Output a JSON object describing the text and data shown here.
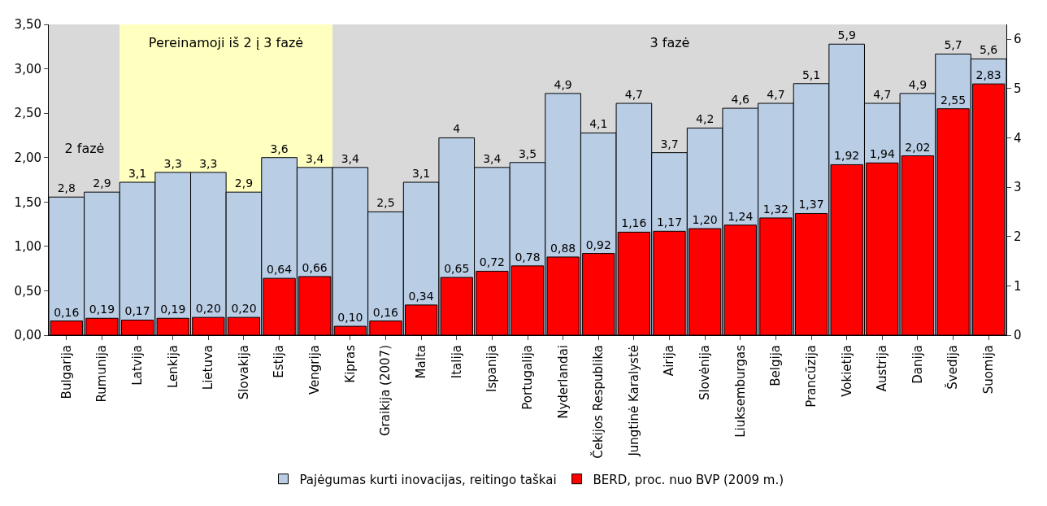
{
  "chart_data": {
    "type": "bar",
    "categories": [
      "Bulgarija",
      "Rumunija",
      "Latvija",
      "Lenkija",
      "Lietuva",
      "Slovakija",
      "Estija",
      "Vengrija",
      "Kipras",
      "Graikija (2007)",
      "Malta",
      "Italija",
      "Ispanija",
      "Portugalija",
      "Nyderlandai",
      "Čekijos Respublika",
      "Jungtinė Karalystė",
      "Airija",
      "Slovėnija",
      "Liuksemburgas",
      "Belgija",
      "Prancūzija",
      "Vokietija",
      "Austrija",
      "Danija",
      "Švedija",
      "Suomija"
    ],
    "series": [
      {
        "name": "Pajėgumas kurti inovacijas, reitingo taškai",
        "color": "#b9cde5",
        "axis": "y2",
        "values": [
          2.8,
          2.9,
          3.1,
          3.3,
          3.3,
          2.9,
          3.6,
          3.4,
          3.4,
          2.5,
          3.1,
          4,
          3.4,
          3.5,
          4.9,
          4.1,
          4.7,
          3.7,
          4.2,
          4.6,
          4.7,
          5.1,
          5.9,
          4.7,
          4.9,
          5.7,
          5.6
        ],
        "value_labels": [
          "2,8",
          "2,9",
          "3,1",
          "3,3",
          "3,3",
          "2,9",
          "3,6",
          "3,4",
          "3,4",
          "2,5",
          "3,1",
          "4",
          "3,4",
          "3,5",
          "4,9",
          "4,1",
          "4,7",
          "3,7",
          "4,2",
          "4,6",
          "4,7",
          "5,1",
          "5,9",
          "4,7",
          "4,9",
          "5,7",
          "5,6"
        ]
      },
      {
        "name": "BERD, proc. nuo BVP (2009 m.)",
        "color": "#ff0000",
        "axis": "y",
        "values": [
          0.16,
          0.19,
          0.17,
          0.19,
          0.2,
          0.2,
          0.64,
          0.66,
          0.1,
          0.16,
          0.34,
          0.65,
          0.72,
          0.78,
          0.88,
          0.92,
          1.16,
          1.17,
          1.2,
          1.24,
          1.32,
          1.37,
          1.92,
          1.94,
          2.02,
          2.55,
          2.83
        ],
        "value_labels": [
          "0,16",
          "0,19",
          "0,17",
          "0,19",
          "0,20",
          "0,20",
          "0,64",
          "0,66",
          "0,10",
          "0,16",
          "0,34",
          "0,65",
          "0,72",
          "0,78",
          "0,88",
          "0,92",
          "1,16",
          "1,17",
          "1,20",
          "1,24",
          "1,32",
          "1,37",
          "1,92",
          "1,94",
          "2,02",
          "2,55",
          "2,83"
        ]
      }
    ],
    "ylim": [
      0,
      3.5
    ],
    "yticks": [
      {
        "value": 0,
        "label": "0,00"
      },
      {
        "value": 0.5,
        "label": "0,50"
      },
      {
        "value": 1,
        "label": "1,00"
      },
      {
        "value": 1.5,
        "label": "1,50"
      },
      {
        "value": 2,
        "label": "2,00"
      },
      {
        "value": 2.5,
        "label": "2,50"
      },
      {
        "value": 3,
        "label": "3,00"
      },
      {
        "value": 3.5,
        "label": "3,50"
      }
    ],
    "y2lim": [
      0,
      6.3
    ],
    "y2ticks": [
      0,
      1,
      2,
      3,
      4,
      5,
      6
    ],
    "bands": [
      {
        "axis": "x",
        "from": "Bulgarija",
        "to": "Rumunija",
        "label": "2 fazė",
        "color": "#d9d9d9"
      },
      {
        "axis": "x",
        "from": "Latvija",
        "to": "Vengrija",
        "label": "Pereinamoji iš 2 į 3 fazė",
        "color": "#ffffc0"
      },
      {
        "axis": "x",
        "from": "Kipras",
        "to": "Suomija",
        "label": "3 fazė",
        "color": "#d9d9d9"
      }
    ],
    "legend": "bottom",
    "grid": false
  }
}
